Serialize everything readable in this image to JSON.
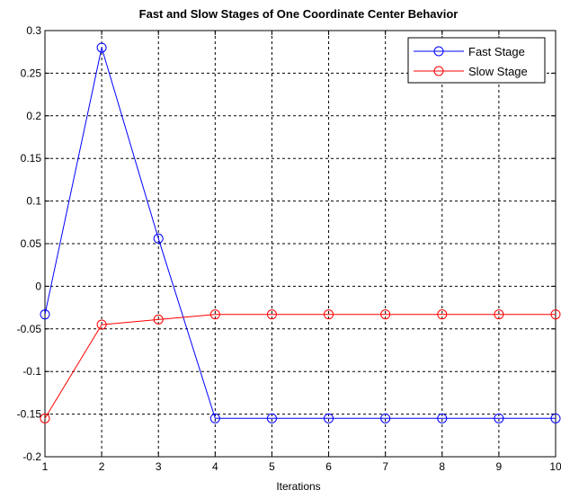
{
  "chart_data": {
    "type": "line",
    "title": "Fast and Slow Stages of One Coordinate Center Behavior",
    "xlabel": "Iterations",
    "ylabel": "",
    "x": [
      1,
      2,
      3,
      4,
      5,
      6,
      7,
      8,
      9,
      10
    ],
    "xlim": [
      1,
      10
    ],
    "ylim": [
      -0.2,
      0.3
    ],
    "xticks": [
      "1",
      "2",
      "3",
      "4",
      "5",
      "6",
      "7",
      "8",
      "9",
      "10"
    ],
    "yticks": [
      "0.3",
      "0.25",
      "0.2",
      "0.15",
      "0.1",
      "0.05",
      "0",
      "-0.05",
      "-0.1",
      "-0.15",
      "-0.2"
    ],
    "ytick_values": [
      0.3,
      0.25,
      0.2,
      0.15,
      0.1,
      0.05,
      0,
      -0.05,
      -0.1,
      -0.15,
      -0.2
    ],
    "grid": true,
    "legend_position": "top-right",
    "series": [
      {
        "name": "Fast Stage",
        "color": "#0000ff",
        "marker": "circle",
        "values": [
          -0.033,
          0.28,
          0.056,
          -0.155,
          -0.155,
          -0.155,
          -0.155,
          -0.155,
          -0.155,
          -0.155
        ]
      },
      {
        "name": "Slow Stage",
        "color": "#ff0000",
        "marker": "circle",
        "values": [
          -0.155,
          -0.045,
          -0.039,
          -0.033,
          -0.033,
          -0.033,
          -0.033,
          -0.033,
          -0.033,
          -0.033
        ]
      }
    ]
  }
}
